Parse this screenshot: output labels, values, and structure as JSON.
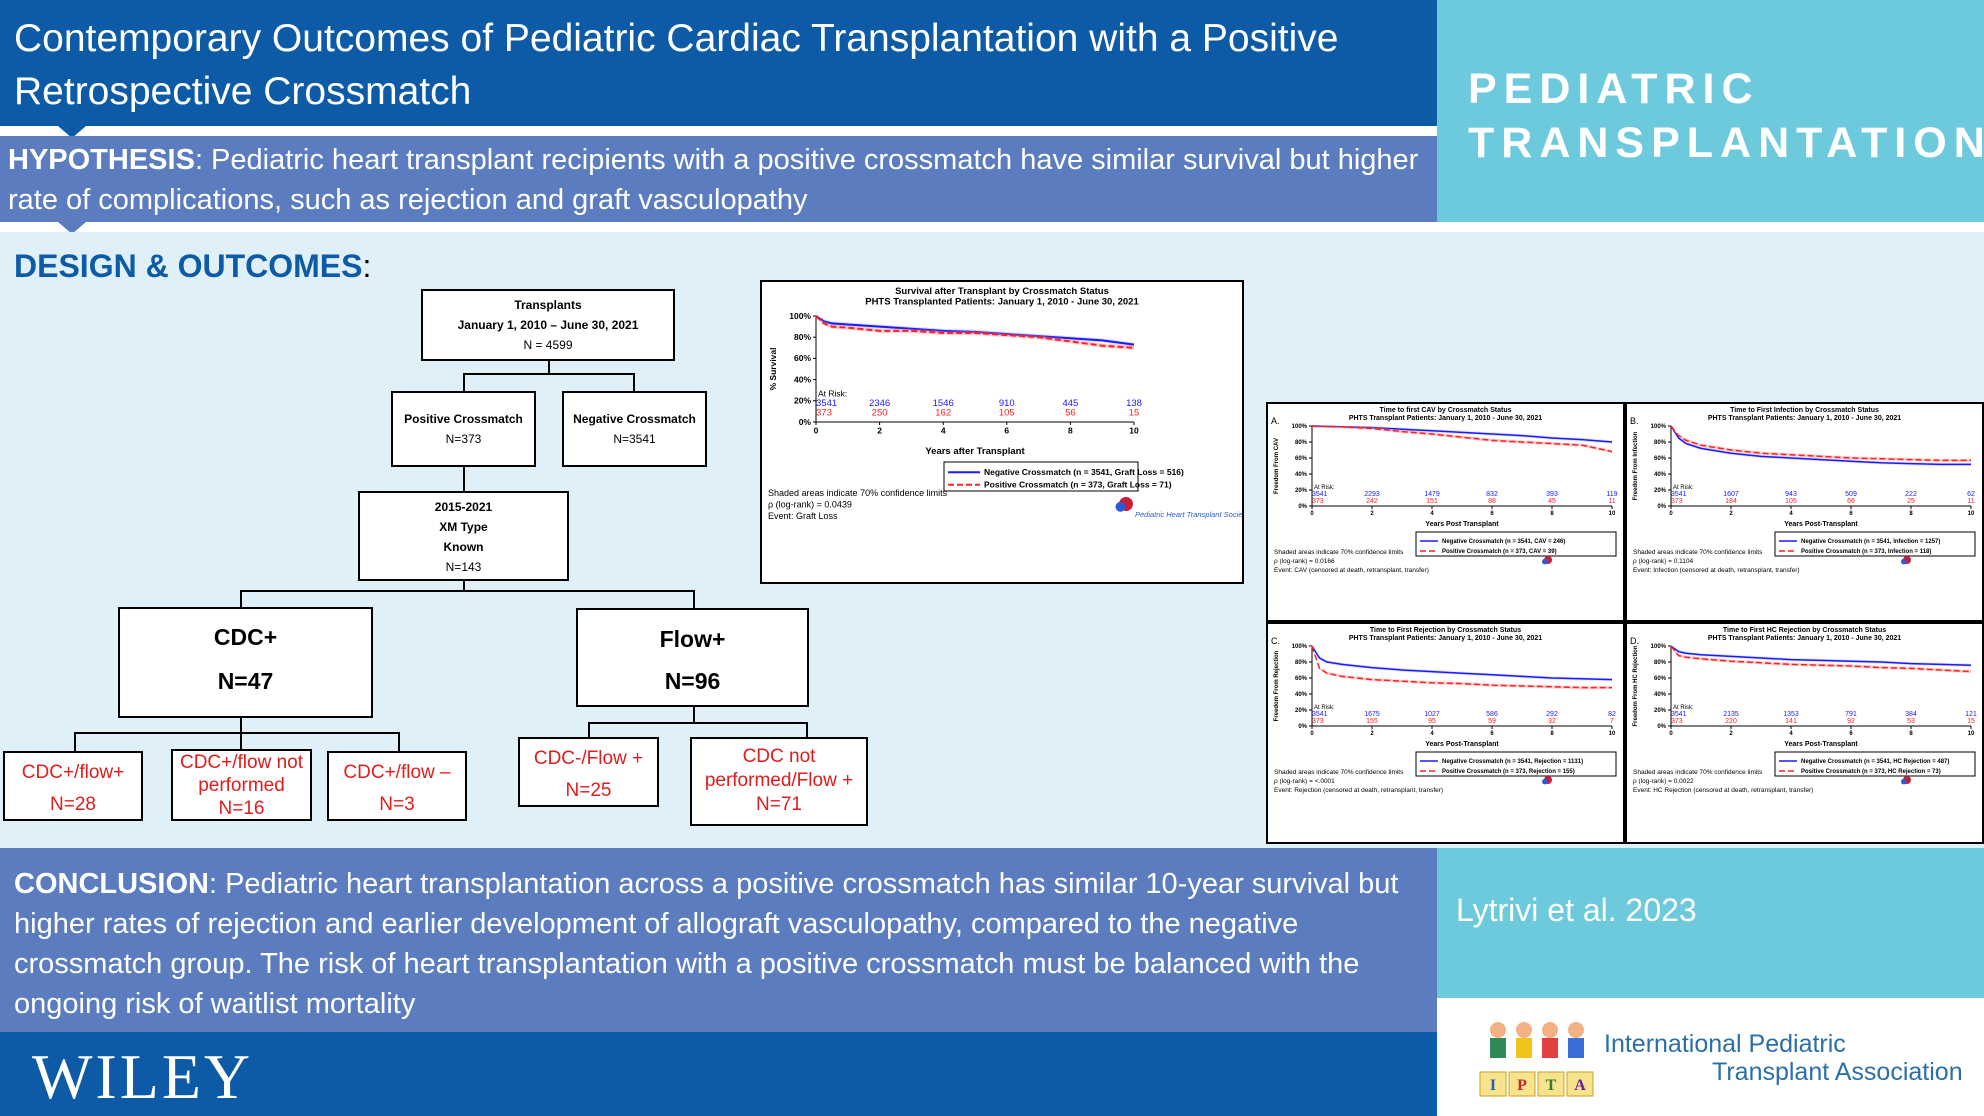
{
  "title": "Contemporary Outcomes of Pediatric Cardiac Transplantation with a Positive Retrospective Crossmatch",
  "brand": {
    "line1": "PEDIATRIC",
    "line2": "TRANSPLANTATION"
  },
  "hypothesis": {
    "label": "HYPOTHESIS",
    "text": ": Pediatric heart transplant recipients with a positive crossmatch have similar survival but higher rate of complications, such as rejection and graft vasculopathy"
  },
  "design": {
    "label": "DESIGN & OUTCOMES",
    "colon": ":"
  },
  "flow": {
    "transplants": {
      "title": "Transplants",
      "dates": "January 1, 2010 – June 30, 2021",
      "n": "N = 4599"
    },
    "positive": {
      "title": "Positive Crossmatch",
      "n": "N=373"
    },
    "negative": {
      "title": "Negative Crossmatch",
      "n": "N=3541"
    },
    "known": {
      "l1": "2015-2021",
      "l2": "XM Type",
      "l3": "Known",
      "n": "N=143"
    },
    "cdc": {
      "title": "CDC+",
      "n": "N=47"
    },
    "flowpos": {
      "title": "Flow+",
      "n": "N=96"
    },
    "cdc_flow_pos": {
      "title": "CDC+/flow+",
      "n": "N=28"
    },
    "cdc_flow_np": {
      "title": "CDC+/flow not performed",
      "n": "N=16"
    },
    "cdc_flow_neg": {
      "title": "CDC+/flow –",
      "n": "N=3"
    },
    "cdcneg_flowpos": {
      "title": "CDC-/Flow +",
      "n": "N=25"
    },
    "cdcnp_flowpos": {
      "title": "CDC not performed/Flow +",
      "n": "N=71"
    }
  },
  "chart_data": [
    {
      "type": "line",
      "title": "Survival after Transplant by Crossmatch Status",
      "subtitle": "PHTS Transplanted Patients: January 1, 2010 - June 30, 2021",
      "xlabel": "Years after Transplant",
      "ylabel": "% Survival",
      "xlim": [
        0,
        10
      ],
      "ylim": [
        0,
        100
      ],
      "xticks": [
        "0",
        "2",
        "4",
        "6",
        "8",
        "10"
      ],
      "yticks": [
        "0%",
        "20%",
        "40%",
        "60%",
        "80%",
        "100%"
      ],
      "at_risk_label": "At Risk:",
      "x": [
        0,
        0.25,
        0.5,
        1,
        2,
        3,
        4,
        5,
        6,
        7,
        8,
        9,
        10
      ],
      "series": [
        {
          "name": "Negative Crossmatch (n = 3541, Graft Loss = 516)",
          "color": "#1a1aff",
          "values": [
            100,
            95,
            93,
            92,
            90,
            88,
            86,
            85,
            83,
            81,
            79,
            77,
            73
          ],
          "at_risk": [
            "3541",
            "2346",
            "1546",
            "910",
            "445",
            "138"
          ]
        },
        {
          "name": "Positive Crossmatch (n = 373, Graft Loss = 71)",
          "color": "#ff2020",
          "values": [
            100,
            93,
            90,
            89,
            86,
            86,
            84,
            84,
            82,
            80,
            76,
            72,
            70
          ],
          "at_risk": [
            "373",
            "250",
            "162",
            "105",
            "56",
            "15"
          ]
        }
      ],
      "notes": [
        "Shaded areas indicate 70% confidence limits",
        "ρ (log-rank) = 0.0439",
        "Event: Graft Loss"
      ],
      "logo_text": "Pediatric Heart Transplant Society"
    },
    {
      "type": "line",
      "panel": "A.",
      "title": "Time to first CAV by Crossmatch Status",
      "subtitle": "PHTS Transplant Patients: January 1, 2010 - June 30, 2021",
      "xlabel": "Years Post Transplant",
      "ylabel": "Freedom From CAV",
      "xlim": [
        0,
        10
      ],
      "ylim": [
        0,
        100
      ],
      "xticks": [
        "0",
        "2",
        "4",
        "6",
        "8",
        "10"
      ],
      "yticks": [
        "0%",
        "20%",
        "40%",
        "60%",
        "80%",
        "100%"
      ],
      "at_risk_label": "At Risk:",
      "x": [
        0,
        1,
        2,
        3,
        4,
        5,
        6,
        7,
        8,
        9,
        10
      ],
      "series": [
        {
          "name": "Negative Crossmatch (n = 3541, CAV = 246)",
          "color": "#1a1aff",
          "values": [
            100,
            99,
            98,
            96,
            94,
            92,
            90,
            88,
            85,
            83,
            80
          ],
          "at_risk": [
            "3541",
            "2293",
            "1479",
            "832",
            "393",
            "119"
          ]
        },
        {
          "name": "Positive Crossmatch (n = 373, CAV = 39)",
          "color": "#ff2020",
          "values": [
            100,
            99,
            97,
            93,
            90,
            86,
            82,
            80,
            78,
            76,
            68
          ],
          "at_risk": [
            "373",
            "242",
            "151",
            "88",
            "45",
            "11"
          ]
        }
      ],
      "notes": [
        "Shaded areas indicate 70% confidence limits",
        "ρ (log-rank) = 0.0166",
        "Event: CAV (censored at death, retransplant, transfer)"
      ]
    },
    {
      "type": "line",
      "panel": "B.",
      "title": "Time to First Infection by Crossmatch Status",
      "subtitle": "PHTS Transplant Patients: January 1, 2010 - June 30, 2021",
      "xlabel": "Years Post-Transplant",
      "ylabel": "Freedom From Infection",
      "xlim": [
        0,
        10
      ],
      "ylim": [
        0,
        100
      ],
      "xticks": [
        "0",
        "2",
        "4",
        "6",
        "8",
        "10"
      ],
      "yticks": [
        "0%",
        "20%",
        "40%",
        "60%",
        "80%",
        "100%"
      ],
      "at_risk_label": "At Risk:",
      "x": [
        0,
        0.25,
        0.5,
        1,
        2,
        3,
        4,
        5,
        6,
        7,
        8,
        9,
        10
      ],
      "series": [
        {
          "name": "Negative Crossmatch (n = 3541, Infection = 1257)",
          "color": "#1a1aff",
          "values": [
            100,
            85,
            78,
            72,
            66,
            62,
            60,
            58,
            56,
            54,
            53,
            52,
            52
          ],
          "at_risk": [
            "3541",
            "1607",
            "943",
            "509",
            "222",
            "62"
          ]
        },
        {
          "name": "Positive Crossmatch (n = 373, Infection = 118)",
          "color": "#ff2020",
          "values": [
            100,
            88,
            82,
            76,
            70,
            66,
            64,
            62,
            60,
            59,
            58,
            57,
            57
          ],
          "at_risk": [
            "373",
            "184",
            "105",
            "66",
            "25",
            "11"
          ]
        }
      ],
      "notes": [
        "Shaded areas indicate 70% confidence limits",
        "ρ (log-rank) = 0.1104",
        "Event: Infection (censored at death, retransplant, transfer)"
      ]
    },
    {
      "type": "line",
      "panel": "C.",
      "title": "Time to First Rejection by Crossmatch Status",
      "subtitle": "PHTS Transplant Patients: January 1, 2010 - June 30, 2021",
      "xlabel": "Years Post-Transplant",
      "ylabel": "Freedom From Rejection",
      "xlim": [
        0,
        10
      ],
      "ylim": [
        0,
        100
      ],
      "xticks": [
        "0",
        "2",
        "4",
        "6",
        "8",
        "10"
      ],
      "yticks": [
        "0%",
        "20%",
        "40%",
        "60%",
        "80%",
        "100%"
      ],
      "at_risk_label": "At Risk:",
      "x": [
        0,
        0.25,
        0.5,
        1,
        2,
        3,
        4,
        5,
        6,
        7,
        8,
        9,
        10
      ],
      "series": [
        {
          "name": "Negative Crossmatch (n = 3541, Rejection = 1131)",
          "color": "#1a1aff",
          "values": [
            100,
            85,
            80,
            77,
            73,
            70,
            68,
            66,
            64,
            62,
            60,
            59,
            58
          ],
          "at_risk": [
            "3541",
            "1675",
            "1027",
            "586",
            "292",
            "82"
          ]
        },
        {
          "name": "Positive Crossmatch (n = 373, Rejection = 155)",
          "color": "#ff2020",
          "values": [
            100,
            72,
            66,
            62,
            58,
            56,
            54,
            53,
            51,
            50,
            49,
            48,
            48
          ],
          "at_risk": [
            "373",
            "155",
            "95",
            "59",
            "32",
            "7"
          ]
        }
      ],
      "notes": [
        "Shaded areas indicate 70% confidence limits",
        "ρ (log-rank) = <.0001",
        "Event: Rejection (censored at death, retransplant, transfer)"
      ]
    },
    {
      "type": "line",
      "panel": "D.",
      "title": "Time to First HC Rejection by Crossmatch Status",
      "subtitle": "PHTS Transplant Patients: January 1, 2010 - June 30, 2021",
      "xlabel": "Years Post-Transplant",
      "ylabel": "Freedom From HC Rejection",
      "xlim": [
        0,
        10
      ],
      "ylim": [
        0,
        100
      ],
      "xticks": [
        "0",
        "2",
        "4",
        "6",
        "8",
        "10"
      ],
      "yticks": [
        "0%",
        "20%",
        "40%",
        "60%",
        "80%",
        "100%"
      ],
      "at_risk_label": "At Risk:",
      "x": [
        0,
        0.25,
        0.5,
        1,
        2,
        3,
        4,
        5,
        6,
        7,
        8,
        9,
        10
      ],
      "series": [
        {
          "name": "Negative Crossmatch (n = 3541, HC Rejection = 487)",
          "color": "#1a1aff",
          "values": [
            100,
            93,
            91,
            89,
            87,
            85,
            83,
            82,
            81,
            80,
            78,
            77,
            76
          ],
          "at_risk": [
            "3541",
            "2135",
            "1353",
            "791",
            "384",
            "121"
          ]
        },
        {
          "name": "Positive Crossmatch (n = 373, HC Rejection = 73)",
          "color": "#ff2020",
          "values": [
            100,
            88,
            86,
            84,
            81,
            79,
            77,
            76,
            75,
            73,
            72,
            70,
            68
          ],
          "at_risk": [
            "373",
            "220",
            "141",
            "92",
            "53",
            "15"
          ]
        }
      ],
      "notes": [
        "Shaded areas indicate 70% confidence limits",
        "ρ (log-rank) = 0.0022",
        "Event: HC Rejection (censored at death, retransplant, transfer)"
      ]
    }
  ],
  "conclusion": {
    "label": "CONCLUSION",
    "text": ": Pediatric heart transplantation across a positive crossmatch has similar 10-year survival but higher rates of rejection and earlier development of allograft vasculopathy, compared to the negative crossmatch group. The risk of heart transplantation with a positive crossmatch must be balanced with the ongoing risk of waitlist mortality"
  },
  "author": "Lytrivi et al. 2023",
  "publisher": "WILEY",
  "ipta": {
    "line1": "International Pediatric",
    "line2": "Transplant Association",
    "letters": [
      "I",
      "P",
      "T",
      "A"
    ]
  },
  "colors": {
    "primary": "#0d5aa7",
    "secondary": "#5b7dc0",
    "accent": "#6ccadc",
    "background": "#dff0f8",
    "flow_red": "#e01c1c"
  }
}
